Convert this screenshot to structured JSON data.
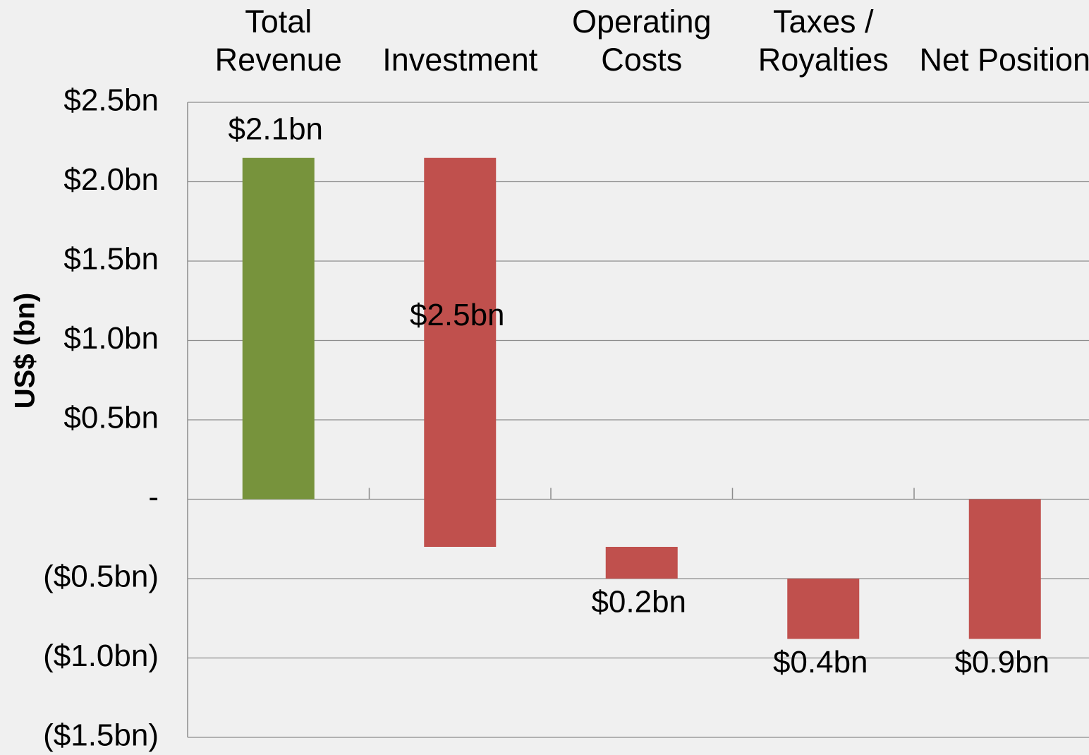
{
  "chart_data": {
    "type": "waterfall",
    "y_axis_label": "US$ (bn)",
    "categories": [
      "Total Revenue",
      "Investment",
      "Operating Costs",
      "Taxes / Royalties",
      "Net Position"
    ],
    "values": [
      2.15,
      -2.45,
      -0.2,
      -0.38,
      -0.88
    ],
    "value_labels": [
      "$2.1bn",
      "$2.5bn",
      "$0.2bn",
      "$0.4bn",
      "$0.9bn"
    ],
    "is_total": [
      false,
      false,
      false,
      false,
      true
    ],
    "label_positions": [
      "above",
      "center",
      "below",
      "below",
      "below"
    ],
    "increase_color": "#77933c",
    "decrease_color": "#c0504d",
    "negative_tick_color": "#ff0000",
    "ylim": [
      -1.5,
      2.5
    ],
    "yticks": [
      {
        "value": -1.5,
        "label": "($1.5bn)"
      },
      {
        "value": -1.0,
        "label": "($1.0bn)"
      },
      {
        "value": -0.5,
        "label": "($0.5bn)"
      },
      {
        "value": 0,
        "label": "-"
      },
      {
        "value": 0.5,
        "label": "$0.5bn"
      },
      {
        "value": 1.0,
        "label": "$1.0bn"
      },
      {
        "value": 1.5,
        "label": "$1.5bn"
      },
      {
        "value": 2.0,
        "label": "$2.0bn"
      },
      {
        "value": 2.5,
        "label": "$2.5bn"
      }
    ],
    "grid": true
  }
}
